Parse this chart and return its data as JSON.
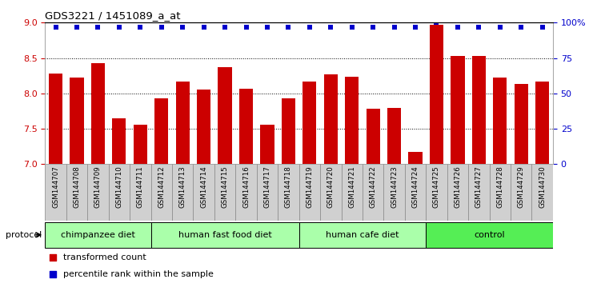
{
  "title": "GDS3221 / 1451089_a_at",
  "samples": [
    "GSM144707",
    "GSM144708",
    "GSM144709",
    "GSM144710",
    "GSM144711",
    "GSM144712",
    "GSM144713",
    "GSM144714",
    "GSM144715",
    "GSM144716",
    "GSM144717",
    "GSM144718",
    "GSM144719",
    "GSM144720",
    "GSM144721",
    "GSM144722",
    "GSM144723",
    "GSM144724",
    "GSM144725",
    "GSM144726",
    "GSM144727",
    "GSM144728",
    "GSM144729",
    "GSM144730"
  ],
  "bar_values": [
    8.28,
    8.22,
    8.43,
    7.65,
    7.56,
    7.93,
    8.17,
    8.05,
    8.37,
    8.07,
    7.56,
    7.93,
    8.17,
    8.27,
    8.23,
    7.78,
    7.79,
    7.17,
    8.97,
    8.53,
    8.53,
    8.22,
    8.13,
    8.17
  ],
  "percentile_values": [
    97,
    97,
    97,
    97,
    97,
    97,
    97,
    97,
    97,
    97,
    97,
    97,
    97,
    97,
    97,
    97,
    97,
    97,
    100,
    97,
    97,
    97,
    97,
    97
  ],
  "bar_color": "#cc0000",
  "dot_color": "#0000cc",
  "ylim_left": [
    7.0,
    9.0
  ],
  "ylim_right": [
    0,
    100
  ],
  "yticks_left": [
    7.0,
    7.5,
    8.0,
    8.5,
    9.0
  ],
  "yticks_right": [
    0,
    25,
    50,
    75,
    100
  ],
  "group_spans": [
    {
      "label": "chimpanzee diet",
      "start": 0,
      "end": 5,
      "color": "#aaffaa"
    },
    {
      "label": "human fast food diet",
      "start": 5,
      "end": 12,
      "color": "#aaffaa"
    },
    {
      "label": "human cafe diet",
      "start": 12,
      "end": 18,
      "color": "#aaffaa"
    },
    {
      "label": "control",
      "start": 18,
      "end": 24,
      "color": "#55ee55"
    }
  ],
  "legend_items": [
    {
      "label": "transformed count",
      "color": "#cc0000"
    },
    {
      "label": "percentile rank within the sample",
      "color": "#0000cc"
    }
  ],
  "protocol_label": "protocol",
  "background_color": "#ffffff",
  "tick_label_color_left": "#cc0000",
  "tick_label_color_right": "#0000cc",
  "sample_box_color": "#d0d0d0",
  "sample_box_edge": "#888888"
}
